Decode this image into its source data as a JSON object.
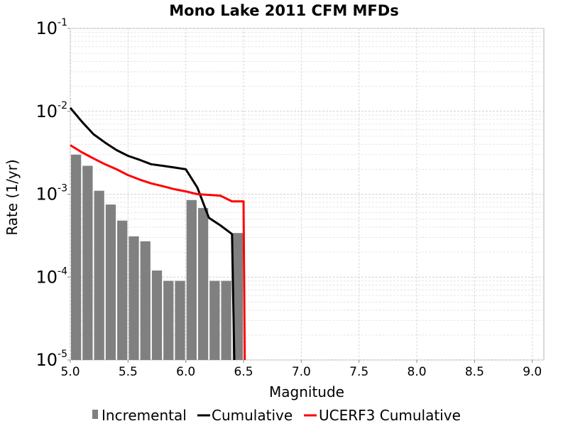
{
  "chart_data": {
    "type": "bar",
    "title": "Mono Lake 2011 CFM MFDs",
    "xlabel": "Magnitude",
    "ylabel": "Rate (1/yr)",
    "xlim": [
      5.0,
      9.1
    ],
    "ylim": [
      1e-05,
      0.1
    ],
    "yscale": "log",
    "grid": true,
    "legend_position": "bottom",
    "x_ticks": [
      "5.0",
      "5.5",
      "6.0",
      "6.5",
      "7.0",
      "7.5",
      "8.0",
      "8.5",
      "9.0"
    ],
    "x_tick_values": [
      5.0,
      5.5,
      6.0,
      6.5,
      7.0,
      7.5,
      8.0,
      8.5,
      9.0
    ],
    "y_ticks": [
      {
        "base": "10",
        "exp": "-5",
        "value": 1e-05
      },
      {
        "base": "10",
        "exp": "-4",
        "value": 0.0001
      },
      {
        "base": "10",
        "exp": "-3",
        "value": 0.001
      },
      {
        "base": "10",
        "exp": "-2",
        "value": 0.01
      },
      {
        "base": "10",
        "exp": "-1",
        "value": 0.1
      }
    ],
    "bar_width": 0.1,
    "series": [
      {
        "name": "Incremental",
        "kind": "bar",
        "color": "#808080",
        "x": [
          5.05,
          5.15,
          5.25,
          5.35,
          5.45,
          5.55,
          5.65,
          5.75,
          5.85,
          5.95,
          6.05,
          6.15,
          6.25,
          6.35,
          6.45
        ],
        "y": [
          0.003,
          0.0022,
          0.0011,
          0.00075,
          0.00048,
          0.00031,
          0.00027,
          0.00012,
          9e-05,
          9e-05,
          0.00085,
          0.00068,
          9e-05,
          9e-05,
          0.00034
        ]
      },
      {
        "name": "Cumulative",
        "kind": "line",
        "color": "#000000",
        "x": [
          5.0,
          5.1,
          5.2,
          5.3,
          5.4,
          5.5,
          5.6,
          5.7,
          5.8,
          5.9,
          6.0,
          6.1,
          6.2,
          6.3,
          6.4,
          6.42
        ],
        "y": [
          0.011,
          0.0075,
          0.0053,
          0.0042,
          0.0034,
          0.0029,
          0.0026,
          0.0023,
          0.0022,
          0.0021,
          0.002,
          0.0012,
          0.00052,
          0.00042,
          0.00033,
          1e-05
        ]
      },
      {
        "name": "UCERF3 Cumulative",
        "kind": "line",
        "color": "#ff0000",
        "x": [
          5.0,
          5.1,
          5.2,
          5.3,
          5.4,
          5.5,
          5.6,
          5.7,
          5.8,
          5.9,
          6.0,
          6.1,
          6.2,
          6.3,
          6.4,
          6.5,
          6.51
        ],
        "y": [
          0.0039,
          0.0032,
          0.0027,
          0.0023,
          0.002,
          0.0017,
          0.0015,
          0.00135,
          0.00125,
          0.00115,
          0.00108,
          0.001,
          0.00098,
          0.00096,
          0.00082,
          0.00082,
          1e-05
        ]
      }
    ]
  }
}
